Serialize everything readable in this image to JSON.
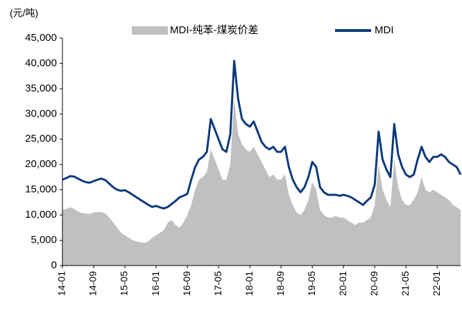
{
  "chart_data": {
    "type": "area_line",
    "unit_label": "(元/吨)",
    "categories": [
      "14-01",
      null,
      null,
      null,
      null,
      null,
      null,
      null,
      "14-09",
      null,
      null,
      null,
      null,
      null,
      null,
      null,
      "15-05",
      null,
      null,
      null,
      null,
      null,
      null,
      null,
      "16-01",
      null,
      null,
      null,
      null,
      null,
      null,
      null,
      "16-09",
      null,
      null,
      null,
      null,
      null,
      null,
      null,
      "17-05",
      null,
      null,
      null,
      null,
      null,
      null,
      null,
      "18-01",
      null,
      null,
      null,
      null,
      null,
      null,
      null,
      "18-09",
      null,
      null,
      null,
      null,
      null,
      null,
      null,
      "19-05",
      null,
      null,
      null,
      null,
      null,
      null,
      null,
      "20-01",
      null,
      null,
      null,
      null,
      null,
      null,
      null,
      "20-09",
      null,
      null,
      null,
      null,
      null,
      null,
      null,
      "21-05",
      null,
      null,
      null,
      null,
      null,
      null,
      null,
      "22-01",
      null,
      null,
      null,
      null,
      null,
      null
    ],
    "series": [
      {
        "name": "MDI-纯苯-煤炭价差",
        "kind": "area",
        "color": "#c0c0c0",
        "values": [
          11000,
          11200,
          11500,
          11200,
          10700,
          10400,
          10300,
          10200,
          10500,
          10600,
          10600,
          10300,
          9500,
          8500,
          7500,
          6500,
          6000,
          5500,
          5000,
          4800,
          4600,
          4500,
          4800,
          5500,
          6000,
          6500,
          7000,
          8500,
          9000,
          8000,
          7500,
          8500,
          10000,
          12000,
          15000,
          17000,
          17500,
          18500,
          23000,
          21000,
          19000,
          17000,
          17000,
          20000,
          33000,
          26000,
          24000,
          23000,
          22500,
          23500,
          22000,
          20500,
          19000,
          17500,
          18000,
          17000,
          17000,
          18000,
          14000,
          12000,
          10500,
          10000,
          11000,
          13000,
          16500,
          15000,
          11000,
          10000,
          9500,
          9500,
          9800,
          9500,
          9500,
          9000,
          8500,
          8000,
          8500,
          8500,
          9000,
          9500,
          12000,
          20000,
          15000,
          13000,
          11500,
          21000,
          15500,
          13000,
          12000,
          12000,
          13000,
          14500,
          17500,
          15000,
          14500,
          15000,
          14500,
          14000,
          13500,
          13000,
          12000,
          11500,
          11000
        ]
      },
      {
        "name": "MDI",
        "kind": "line",
        "color": "#0d3a7a",
        "values": [
          17000,
          17300,
          17700,
          17600,
          17200,
          16800,
          16500,
          16400,
          16700,
          17000,
          17200,
          16900,
          16200,
          15500,
          15000,
          14800,
          14900,
          14500,
          14000,
          13500,
          13000,
          12500,
          12000,
          11600,
          11800,
          11500,
          11300,
          11600,
          12200,
          12800,
          13500,
          13800,
          14200,
          17000,
          19500,
          21000,
          21500,
          22500,
          29000,
          27000,
          25000,
          23000,
          22500,
          26000,
          40500,
          33000,
          29000,
          28000,
          27500,
          28500,
          26500,
          24500,
          23500,
          23000,
          23500,
          22500,
          22500,
          23500,
          19500,
          17000,
          15500,
          14500,
          15500,
          17500,
          20500,
          19500,
          15500,
          14500,
          14000,
          14000,
          14000,
          13800,
          14000,
          13800,
          13500,
          13000,
          12500,
          12000,
          12800,
          13500,
          16000,
          26500,
          21000,
          19000,
          17500,
          28000,
          22000,
          19500,
          18000,
          17500,
          18000,
          21000,
          23500,
          21500,
          20500,
          21500,
          21500,
          22000,
          21500,
          20500,
          20000,
          19500,
          18000
        ]
      }
    ],
    "ylim": [
      0,
      45000
    ],
    "yticks": [
      0,
      {
        "value": 5000,
        "label": "5,000"
      },
      {
        "value": 10000,
        "label": "10,000"
      },
      {
        "value": 15000,
        "label": "15,000"
      },
      {
        "value": 20000,
        "label": "20,000"
      },
      {
        "value": 25000,
        "label": "25,000"
      },
      {
        "value": 30000,
        "label": "30,000"
      },
      {
        "value": 35000,
        "label": "35,000"
      },
      {
        "value": 40000,
        "label": "40,000"
      },
      {
        "value": 45000,
        "label": "45,000"
      }
    ]
  }
}
